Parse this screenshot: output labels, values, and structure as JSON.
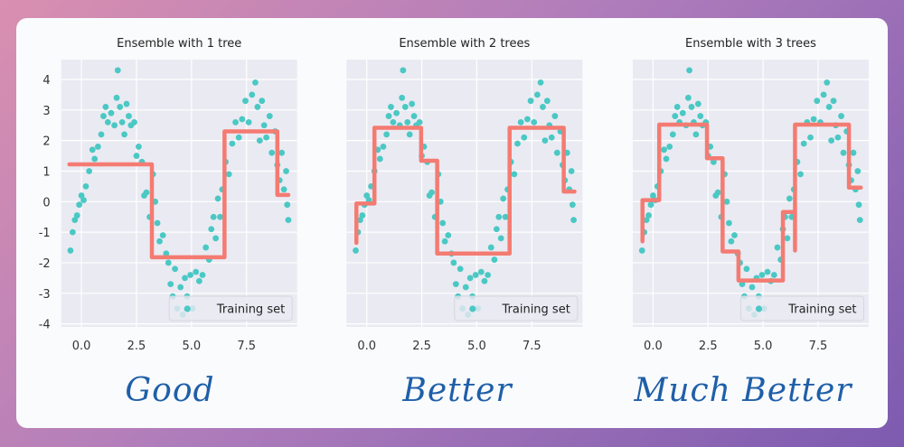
{
  "colors": {
    "scatter": "#4ac8c4",
    "prediction": "#f47b72",
    "plot_bg": "#eaeaf2",
    "grid": "#ffffff",
    "verdict": "#1f5fa8"
  },
  "chart_data": [
    {
      "type": "scatter+line",
      "title": "Ensemble with 1 tree",
      "xlim": [
        -0.92,
        9.8
      ],
      "ylim": [
        -4.1,
        4.65
      ],
      "xticks": [
        "0.0",
        "2.5",
        "5.0",
        "7.5"
      ],
      "yticks": [
        "4",
        "3",
        "2",
        "1",
        "0",
        "-1",
        "-2",
        "-3",
        "-4"
      ],
      "grid": true,
      "legend": "bottom-right",
      "legend_entries": [
        "Training set"
      ],
      "prediction": [
        [
          -0.55,
          1.22
        ],
        [
          3.2,
          1.22
        ],
        [
          3.2,
          -1.82
        ],
        [
          6.5,
          -1.82
        ],
        [
          6.5,
          2.3
        ],
        [
          8.9,
          2.3
        ],
        [
          8.9,
          0.22
        ],
        [
          9.4,
          0.22
        ]
      ]
    },
    {
      "type": "scatter+line",
      "title": "Ensemble with 2 trees",
      "xlim": [
        -0.92,
        9.8
      ],
      "ylim": [
        -4.1,
        4.65
      ],
      "xticks": [
        "0.0",
        "2.5",
        "5.0",
        "7.5"
      ],
      "grid": true,
      "legend": "bottom-right",
      "legend_entries": [
        "Training set"
      ],
      "prediction": [
        [
          -0.47,
          -1.35
        ],
        [
          -0.47,
          -0.06
        ],
        [
          0.35,
          -0.06
        ],
        [
          0.35,
          2.42
        ],
        [
          2.47,
          2.42
        ],
        [
          2.47,
          1.34
        ],
        [
          3.2,
          1.34
        ],
        [
          3.2,
          -1.7
        ],
        [
          6.49,
          -1.7
        ],
        [
          6.49,
          2.42
        ],
        [
          8.95,
          2.42
        ],
        [
          8.95,
          0.33
        ],
        [
          9.44,
          0.33
        ]
      ]
    },
    {
      "type": "scatter+line",
      "title": "Ensemble with 3 trees",
      "xlim": [
        -0.92,
        9.8
      ],
      "ylim": [
        -4.1,
        4.65
      ],
      "xticks": [
        "0.0",
        "2.5",
        "5.0",
        "7.5"
      ],
      "grid": true,
      "legend": "bottom-right",
      "legend_entries": [
        "Training set"
      ],
      "prediction": [
        [
          -0.48,
          -1.3
        ],
        [
          -0.48,
          0.05
        ],
        [
          0.28,
          0.05
        ],
        [
          0.28,
          2.52
        ],
        [
          2.45,
          2.52
        ],
        [
          2.45,
          1.42
        ],
        [
          3.16,
          1.42
        ],
        [
          3.16,
          -1.63
        ],
        [
          3.88,
          -1.63
        ],
        [
          3.88,
          -2.58
        ],
        [
          5.9,
          -2.58
        ],
        [
          5.9,
          -0.34
        ],
        [
          6.45,
          -0.34
        ],
        [
          6.45,
          -1.6
        ],
        [
          6.45,
          2.52
        ],
        [
          8.9,
          2.52
        ],
        [
          8.9,
          0.46
        ],
        [
          9.44,
          0.46
        ]
      ]
    }
  ],
  "training_set": [
    [
      -0.5,
      -1.6
    ],
    [
      -0.4,
      -1.0
    ],
    [
      -0.3,
      -0.6
    ],
    [
      -0.2,
      -0.45
    ],
    [
      -0.1,
      -0.1
    ],
    [
      0.0,
      0.2
    ],
    [
      0.1,
      0.05
    ],
    [
      0.2,
      0.5
    ],
    [
      0.35,
      1.0
    ],
    [
      0.5,
      1.7
    ],
    [
      0.6,
      1.4
    ],
    [
      0.75,
      1.8
    ],
    [
      0.9,
      2.2
    ],
    [
      1.0,
      2.8
    ],
    [
      1.1,
      3.1
    ],
    [
      1.2,
      2.6
    ],
    [
      1.35,
      2.9
    ],
    [
      1.5,
      2.5
    ],
    [
      1.6,
      3.4
    ],
    [
      1.65,
      4.3
    ],
    [
      1.75,
      3.1
    ],
    [
      1.85,
      2.6
    ],
    [
      1.95,
      2.2
    ],
    [
      2.05,
      3.2
    ],
    [
      2.15,
      2.8
    ],
    [
      2.25,
      2.5
    ],
    [
      2.4,
      2.6
    ],
    [
      2.5,
      1.5
    ],
    [
      2.6,
      1.8
    ],
    [
      2.75,
      1.3
    ],
    [
      2.85,
      0.2
    ],
    [
      2.95,
      0.3
    ],
    [
      3.1,
      -0.5
    ],
    [
      3.25,
      0.9
    ],
    [
      3.35,
      0.0
    ],
    [
      3.45,
      -0.7
    ],
    [
      3.55,
      -1.3
    ],
    [
      3.7,
      -1.1
    ],
    [
      3.85,
      -1.7
    ],
    [
      3.95,
      -2.0
    ],
    [
      4.05,
      -2.7
    ],
    [
      4.15,
      -3.1
    ],
    [
      4.25,
      -2.2
    ],
    [
      4.35,
      -3.5
    ],
    [
      4.5,
      -2.8
    ],
    [
      4.6,
      -3.7
    ],
    [
      4.7,
      -2.5
    ],
    [
      4.8,
      -3.1
    ],
    [
      4.95,
      -2.4
    ],
    [
      5.05,
      -3.5
    ],
    [
      5.2,
      -2.3
    ],
    [
      5.35,
      -2.6
    ],
    [
      5.5,
      -2.4
    ],
    [
      5.65,
      -1.5
    ],
    [
      5.8,
      -1.9
    ],
    [
      5.9,
      -0.9
    ],
    [
      6.0,
      -0.5
    ],
    [
      6.1,
      -1.2
    ],
    [
      6.2,
      0.1
    ],
    [
      6.3,
      -0.5
    ],
    [
      6.4,
      0.4
    ],
    [
      6.55,
      1.3
    ],
    [
      6.7,
      0.9
    ],
    [
      6.85,
      1.9
    ],
    [
      7.0,
      2.6
    ],
    [
      7.15,
      2.1
    ],
    [
      7.3,
      2.7
    ],
    [
      7.45,
      3.3
    ],
    [
      7.6,
      2.6
    ],
    [
      7.75,
      3.5
    ],
    [
      7.9,
      3.9
    ],
    [
      8.0,
      3.1
    ],
    [
      8.1,
      2.0
    ],
    [
      8.2,
      3.3
    ],
    [
      8.3,
      2.5
    ],
    [
      8.4,
      2.1
    ],
    [
      8.55,
      2.8
    ],
    [
      8.65,
      1.6
    ],
    [
      8.8,
      2.3
    ],
    [
      8.9,
      1.2
    ],
    [
      9.0,
      0.7
    ],
    [
      9.1,
      1.6
    ],
    [
      9.2,
      0.4
    ],
    [
      9.3,
      1.0
    ],
    [
      9.35,
      -0.1
    ],
    [
      9.4,
      -0.6
    ]
  ],
  "verdicts": [
    "Good",
    "Better",
    "Much Better"
  ]
}
